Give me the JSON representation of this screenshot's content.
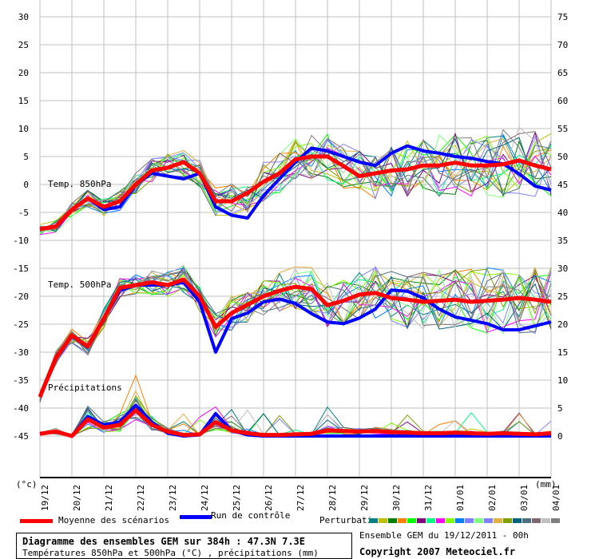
{
  "chart_data": {
    "type": "line",
    "title": "Diagramme des ensembles GEM sur 384h : 47.3N 7.3E",
    "subtitle": "Températures 850hPa et 500hPa (°C) , précipitations (mm)",
    "run_info": "Ensemble GEM du 19/12/2011 - 00h",
    "copyright": "Copyright 2007 Meteociel.fr",
    "left_axis": {
      "unit_label": "(°c)",
      "ticks": [
        30,
        25,
        20,
        15,
        10,
        5,
        0,
        -5,
        -10,
        -15,
        -20,
        -25,
        -30,
        -35,
        -40,
        -45
      ],
      "range": [
        -50,
        33
      ]
    },
    "right_axis": {
      "unit_label": "(mm)",
      "ticks": [
        75,
        70,
        65,
        60,
        55,
        50,
        45,
        40,
        35,
        30,
        25,
        20,
        15,
        10,
        5,
        0
      ],
      "offset_from_left": 45
    },
    "x_labels": [
      "19/12",
      "20/12",
      "21/12",
      "22/12",
      "23/12",
      "24/12",
      "25/12",
      "26/12",
      "27/12",
      "28/12",
      "29/12",
      "30/12",
      "31/12",
      "01/01",
      "02/01",
      "03/01",
      "04/01"
    ],
    "time_step_hours": 12,
    "grid": true,
    "panel_labels": {
      "t850": "Temp. 850hPa",
      "t500": "Temp. 500hPa",
      "precip": "Précipitations"
    },
    "series": [
      {
        "name": "Moyenne des scénarios",
        "variable": "t850",
        "color": "#ff0000",
        "values": [
          -8,
          -7.5,
          -4.5,
          -2.5,
          -4,
          -3,
          0,
          2.5,
          3,
          4,
          2,
          -3,
          -3,
          -1.5,
          0.5,
          2,
          4.5,
          5,
          5,
          3.3,
          1.5,
          2,
          2.5,
          2.7,
          3.4,
          3.4,
          3.9,
          3.4,
          3.4,
          3.6,
          4.3,
          3.4,
          2.7
        ]
      },
      {
        "name": "Run de contrôle",
        "variable": "t850",
        "color": "#0000ff",
        "values": [
          -8,
          -7.5,
          -4.5,
          -2.5,
          -4.5,
          -4,
          0,
          2,
          1.5,
          1,
          2,
          -4,
          -5.5,
          -6,
          -2,
          1,
          4,
          6.5,
          6,
          5,
          4,
          3.4,
          5.6,
          6.9,
          6,
          5.6,
          5,
          4.7,
          4.1,
          3.7,
          1.9,
          -0.3,
          -1
        ]
      },
      {
        "name": "Moyenne des scénarios",
        "variable": "t500",
        "color": "#ff0000",
        "values": [
          -38,
          -31,
          -27,
          -29,
          -24,
          -18.5,
          -18,
          -17.5,
          -18,
          -17,
          -20,
          -25.5,
          -23,
          -21.5,
          -20,
          -19,
          -18.3,
          -18.7,
          -21.6,
          -20.8,
          -19.7,
          -19.4,
          -20.3,
          -20.6,
          -21,
          -20.8,
          -20.6,
          -21,
          -20.8,
          -20.6,
          -20.3,
          -20.6,
          -21
        ]
      },
      {
        "name": "Run de contrôle",
        "variable": "t500",
        "color": "#0000ff",
        "values": [
          -38,
          -31,
          -27,
          -29,
          -24,
          -19,
          -18,
          -18,
          -18,
          -17.5,
          -21,
          -30,
          -24,
          -23,
          -21,
          -20.5,
          -21.3,
          -23.1,
          -24.6,
          -24.9,
          -23.9,
          -22.3,
          -18.9,
          -19.1,
          -20.3,
          -22.3,
          -23.7,
          -24.3,
          -24.9,
          -26,
          -26,
          -25.3,
          -24.6
        ]
      },
      {
        "name": "Moyenne des scénarios",
        "variable": "precip_mm",
        "color": "#ff0000",
        "values": [
          0.4,
          0.8,
          0,
          3,
          1.5,
          2,
          4.6,
          2,
          0.8,
          0.2,
          0.3,
          2.5,
          1,
          0.5,
          0.2,
          0.2,
          0.3,
          0.4,
          1,
          0.9,
          0.8,
          0.9,
          0.7,
          0.6,
          0.5,
          0.5,
          0.6,
          0.5,
          0.4,
          0.5,
          0.4,
          0.3,
          0.5
        ]
      },
      {
        "name": "Run de contrôle",
        "variable": "precip_mm",
        "color": "#0000ff",
        "values": [
          0.4,
          0.8,
          0,
          3.5,
          2,
          2.5,
          5.5,
          2.5,
          0.5,
          0,
          0.2,
          4,
          1,
          0.2,
          0,
          0,
          0,
          0,
          0,
          0,
          0,
          0,
          0,
          0,
          0,
          0,
          0,
          0,
          0,
          0,
          0,
          0,
          0
        ]
      }
    ]
  },
  "legend": {
    "mean_label": "Moyenne des scénarios",
    "control_label": "Run de contrôle",
    "perturbations_label": "Perturbations",
    "perturbation_colors": [
      "#008080",
      "#c0c000",
      "#008000",
      "#ff8000",
      "#00ff00",
      "#800080",
      "#00ff80",
      "#ff00ff",
      "#80ff00",
      "#0080ff",
      "#8080ff",
      "#80ff80",
      "#8080ff",
      "#e0b040",
      "#80a000",
      "#006080",
      "#507080",
      "#806870",
      "#c0c0c0",
      "#808080"
    ]
  }
}
